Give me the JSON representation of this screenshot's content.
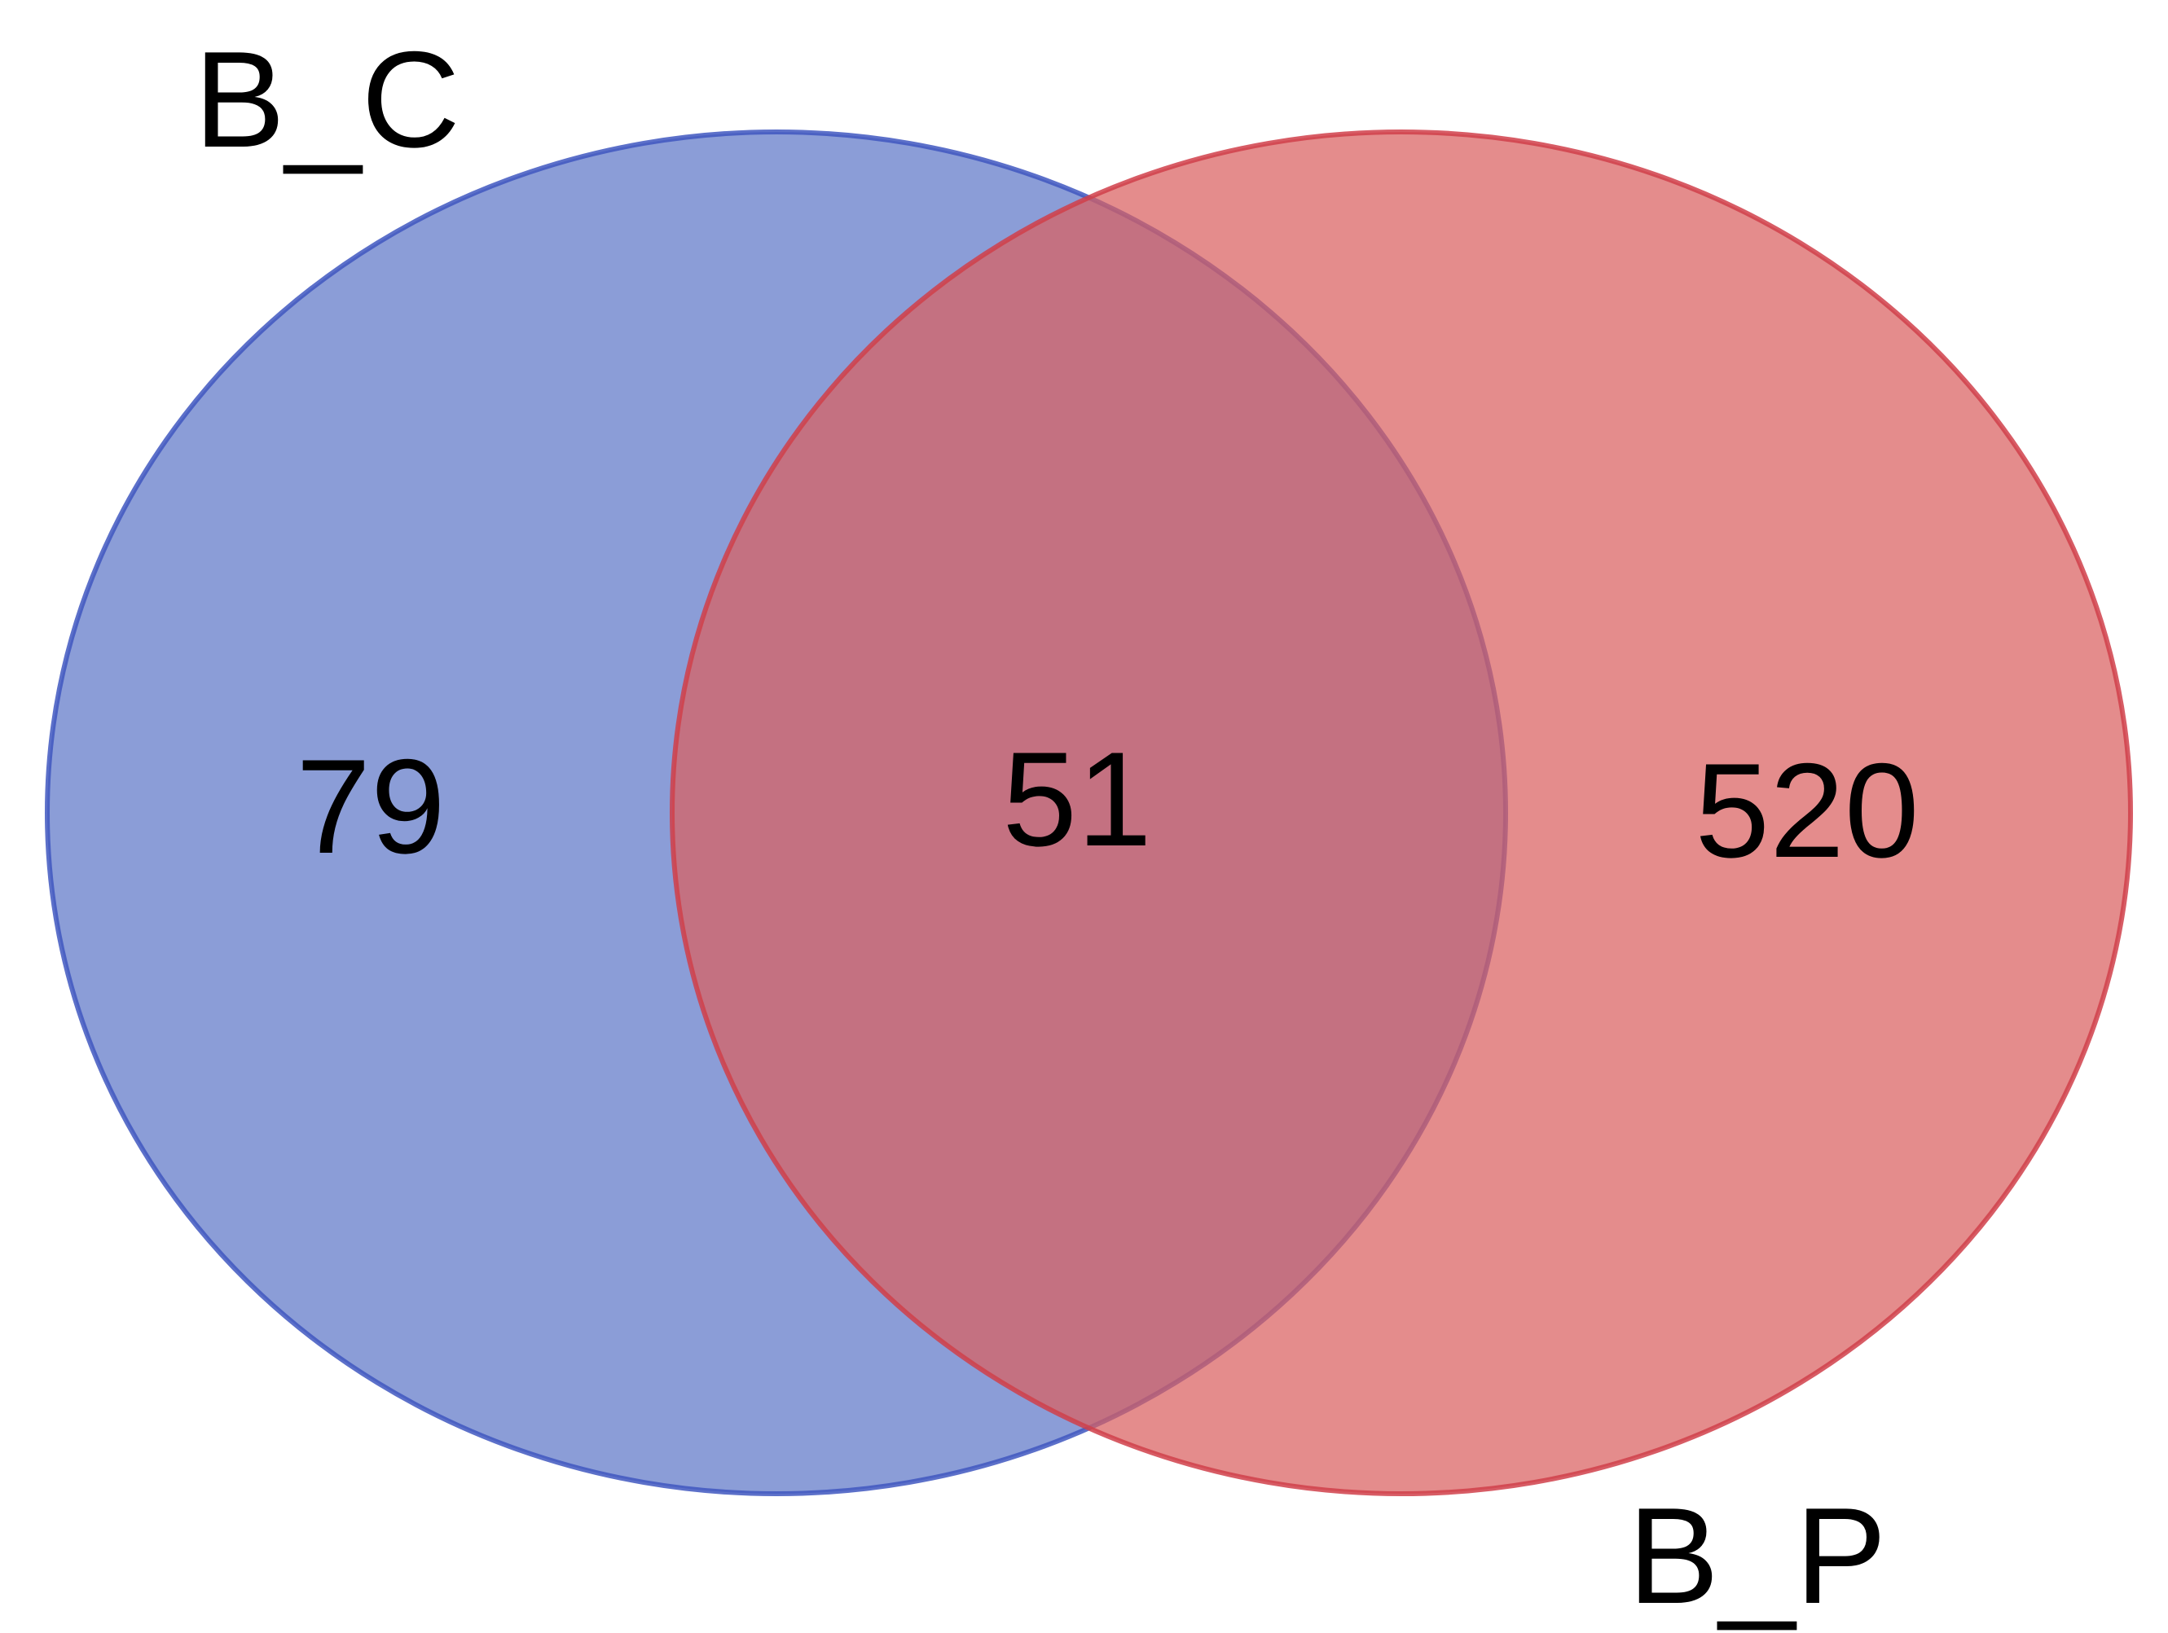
{
  "venn": {
    "sets": [
      {
        "name": "B_C",
        "only_count": "79",
        "fill": "#5e77c8",
        "stroke": "#3f57bf"
      },
      {
        "name": "B_P",
        "only_count": "520",
        "fill": "#d95f5f",
        "stroke": "#d0404a"
      }
    ],
    "intersection_count": "51",
    "overlap_color": "#a95b76"
  }
}
